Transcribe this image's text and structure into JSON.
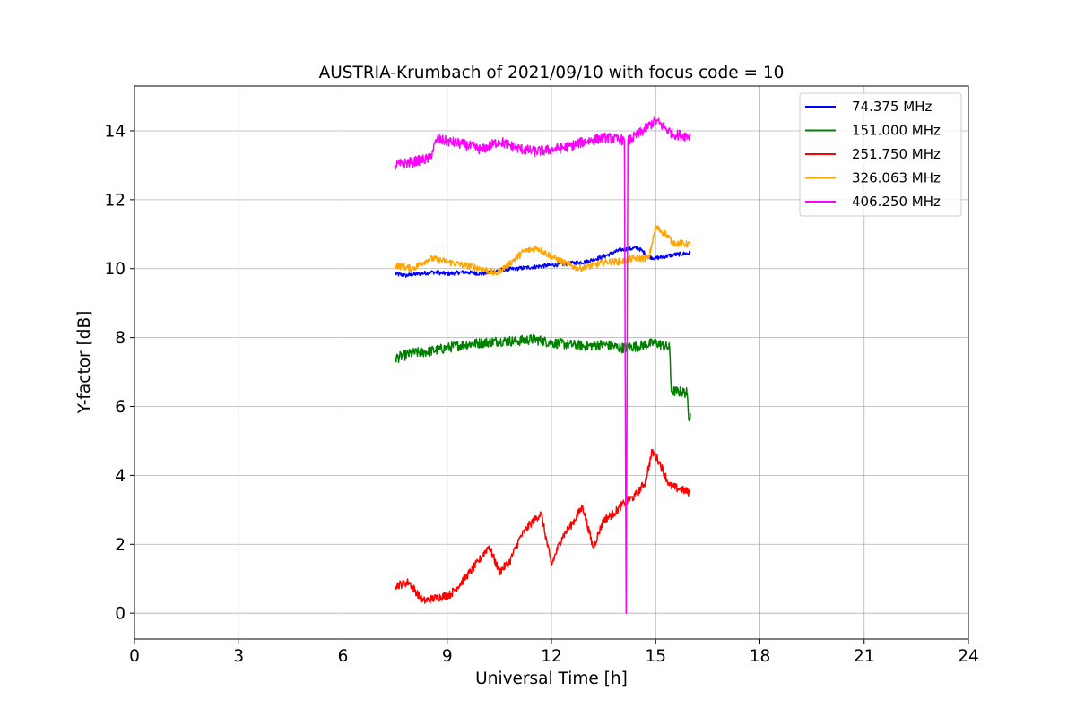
{
  "chart_data": {
    "type": "line",
    "title": "AUSTRIA-Krumbach of 2021/09/10 with focus code = 10",
    "xlabel": "Universal Time [h]",
    "ylabel": "Y-factor [dB]",
    "xlim": [
      0,
      24
    ],
    "ylim": [
      -0.75,
      15.3
    ],
    "xticks": [
      0,
      3,
      6,
      9,
      12,
      15,
      18,
      21,
      24
    ],
    "yticks": [
      0,
      2,
      4,
      6,
      8,
      10,
      12,
      14
    ],
    "grid": true,
    "legend_position": "top-right",
    "series": [
      {
        "name": " 74.375 MHz",
        "color": "#0000ff",
        "noise": 0.06,
        "x": [
          7.5,
          7.8,
          8.2,
          8.6,
          9.0,
          9.5,
          10.0,
          10.5,
          11.0,
          11.5,
          12.0,
          12.5,
          13.0,
          13.5,
          14.0,
          14.5,
          14.8,
          15.0,
          15.5,
          16.0
        ],
        "y": [
          9.85,
          9.8,
          9.85,
          9.9,
          9.85,
          9.9,
          9.85,
          9.95,
          10.0,
          10.05,
          10.1,
          10.15,
          10.2,
          10.35,
          10.55,
          10.6,
          10.35,
          10.3,
          10.4,
          10.45
        ]
      },
      {
        "name": "151.000 MHz",
        "color": "#008000",
        "noise": 0.15,
        "x": [
          7.5,
          8.0,
          8.5,
          9.0,
          9.5,
          10.0,
          10.5,
          11.0,
          11.5,
          12.0,
          12.5,
          13.0,
          13.5,
          14.0,
          14.5,
          15.0,
          15.4,
          15.45,
          15.9,
          15.95,
          16.0
        ],
        "y": [
          7.4,
          7.55,
          7.6,
          7.7,
          7.8,
          7.85,
          7.9,
          7.9,
          7.95,
          7.85,
          7.8,
          7.75,
          7.8,
          7.7,
          7.75,
          7.85,
          7.7,
          6.45,
          6.4,
          5.6,
          5.8
        ]
      },
      {
        "name": "251.750 MHz",
        "color": "#ff0000",
        "noise": 0.12,
        "x": [
          7.5,
          7.9,
          8.3,
          8.7,
          9.1,
          9.5,
          9.9,
          10.2,
          10.5,
          10.8,
          11.1,
          11.4,
          11.7,
          12.0,
          12.3,
          12.6,
          12.9,
          13.2,
          13.5,
          13.8,
          14.1,
          14.4,
          14.7,
          14.9,
          15.1,
          15.4,
          15.7,
          16.0
        ],
        "y": [
          0.8,
          0.9,
          0.35,
          0.45,
          0.55,
          1.0,
          1.5,
          1.95,
          1.2,
          1.5,
          2.2,
          2.6,
          2.9,
          1.4,
          2.2,
          2.6,
          3.1,
          1.9,
          2.7,
          2.9,
          3.2,
          3.4,
          3.8,
          4.7,
          4.4,
          3.7,
          3.6,
          3.5
        ]
      },
      {
        "name": "326.063 MHz",
        "color": "#ffa500",
        "noise": 0.1,
        "x": [
          7.5,
          8.0,
          8.5,
          9.0,
          9.5,
          10.0,
          10.4,
          10.8,
          11.2,
          11.6,
          12.0,
          12.4,
          12.8,
          13.2,
          13.6,
          14.0,
          14.4,
          14.8,
          15.0,
          15.3,
          15.5,
          16.0
        ],
        "y": [
          10.1,
          10.0,
          10.3,
          10.2,
          10.1,
          10.0,
          9.85,
          10.15,
          10.5,
          10.6,
          10.35,
          10.15,
          10.0,
          10.1,
          10.2,
          10.2,
          10.3,
          10.3,
          11.2,
          11.0,
          10.75,
          10.7
        ]
      },
      {
        "name": "406.250 MHz",
        "color": "#ff00ff",
        "noise": 0.15,
        "x": [
          7.5,
          8.0,
          8.5,
          8.7,
          9.0,
          9.5,
          10.0,
          10.5,
          11.0,
          11.5,
          12.0,
          12.5,
          13.0,
          13.5,
          14.0,
          14.1,
          14.15,
          14.2,
          14.5,
          15.0,
          15.5,
          16.0
        ],
        "y": [
          13.0,
          13.1,
          13.2,
          13.75,
          13.7,
          13.6,
          13.45,
          13.7,
          13.5,
          13.4,
          13.45,
          13.55,
          13.7,
          13.8,
          13.75,
          13.7,
          0.0,
          13.7,
          13.9,
          14.3,
          13.9,
          13.85
        ]
      }
    ]
  }
}
